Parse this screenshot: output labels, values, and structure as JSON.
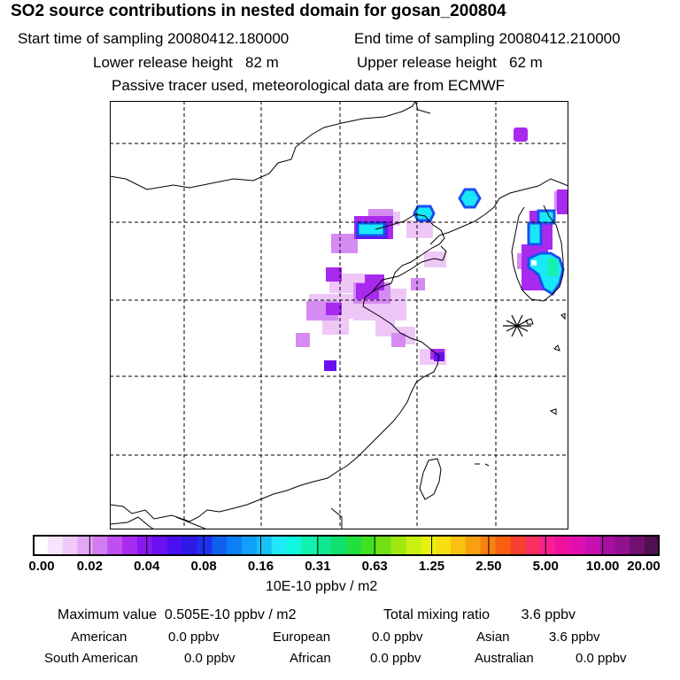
{
  "header": {
    "title": "SO2 source contributions in nested domain for gosan_200804",
    "start_label": "Start time of sampling",
    "start_value": "20080412.180000",
    "end_label": "End time of sampling",
    "end_value": "20080412.210000",
    "lower_label": "Lower release height",
    "lower_value": "82 m",
    "upper_label": "Upper release height",
    "upper_value": "62 m",
    "tracer_note": "Passive tracer used, meteorological data are from ECMWF"
  },
  "colorbar": {
    "tick_labels": [
      "0.00",
      "0.02",
      "0.04",
      "0.08",
      "0.16",
      "0.31",
      "0.63",
      "1.25",
      "2.50",
      "5.00",
      "10.00",
      "20.00"
    ],
    "colors": [
      "#ffffff",
      "#f7e6fb",
      "#efc9f7",
      "#e3a6f5",
      "#d27cf2",
      "#bf4fef",
      "#a92bee",
      "#8a18f0",
      "#6a10f2",
      "#4b10f2",
      "#3018e6",
      "#2030f0",
      "#1060f0",
      "#0a80f4",
      "#10a0f8",
      "#18c0f8",
      "#20e8f8",
      "#10f8e0",
      "#10f0b0",
      "#10e890",
      "#10e070",
      "#20e040",
      "#40e020",
      "#70e010",
      "#a0e810",
      "#c8f010",
      "#e8f010",
      "#f8e010",
      "#f8c010",
      "#f8a010",
      "#f88010",
      "#f86010",
      "#f84030",
      "#f83060",
      "#f82090",
      "#f010a0",
      "#e010b0",
      "#c810b0",
      "#a810a0",
      "#901090",
      "#701070",
      "#501050"
    ],
    "units": "10E-10 ppbv / m2"
  },
  "map": {
    "receptor_marker": "asterisk-icon",
    "plume_colors": {
      "light": "#ecbef6",
      "mid": "#d58bf2",
      "strong": "#a82aee",
      "deep": "#6a10f2",
      "cyan": "#18e8f8",
      "blue": "#1b50f0",
      "green": "#18f0b0"
    }
  },
  "stats": {
    "max_label": "Maximum value",
    "max_value": "0.505E-10 ppbv / m2",
    "total_label": "Total mixing ratio",
    "total_value": "3.6 ppbv"
  },
  "regions": [
    {
      "name": "American",
      "value": "0.0 ppbv"
    },
    {
      "name": "European",
      "value": "0.0 ppbv"
    },
    {
      "name": "Asian",
      "value": "3.6 ppbv"
    },
    {
      "name": "South American",
      "value": "0.0 ppbv"
    },
    {
      "name": "African",
      "value": "0.0 ppbv"
    },
    {
      "name": "Australian",
      "value": "0.0 ppbv"
    }
  ]
}
